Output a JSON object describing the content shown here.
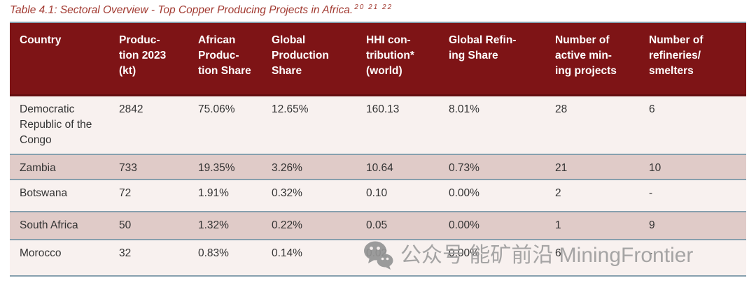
{
  "title": {
    "text": "Table 4.1: Sectoral Overview - Top Copper Producing Projects in Africa.",
    "superscript": "20 21 22"
  },
  "table": {
    "columns": [
      {
        "key": "country",
        "label": "Country"
      },
      {
        "key": "production_2023_kt",
        "label": "Produc-\ntion 2023\n(kt)"
      },
      {
        "key": "african_production_share",
        "label": "African\nProduc-\ntion Share"
      },
      {
        "key": "global_production_share",
        "label": "Global\nProduction\nShare"
      },
      {
        "key": "hhi_contribution_world",
        "label": "HHI con-\ntribution*\n(world)"
      },
      {
        "key": "global_refining_share",
        "label": "Global Refin-\ning Share"
      },
      {
        "key": "active_mining_projects",
        "label": "Number of\nactive min-\ning projects"
      },
      {
        "key": "refineries_smelters",
        "label": "Number of\nrefineries/\nsmelters"
      }
    ],
    "rows": [
      {
        "country": "Democratic Republic of the Congo",
        "cells": [
          "2842",
          "75.06%",
          "12.65%",
          "160.13",
          "8.01%",
          "28",
          "6"
        ]
      },
      {
        "country": "Zambia",
        "cells": [
          "733",
          "19.35%",
          "3.26%",
          "10.64",
          "0.73%",
          "21",
          "10"
        ]
      },
      {
        "country": "Botswana",
        "cells": [
          "72",
          "1.91%",
          "0.32%",
          "0.10",
          "0.00%",
          "2",
          "-"
        ]
      },
      {
        "country": "South Africa",
        "cells": [
          "50",
          "1.32%",
          "0.22%",
          "0.05",
          "0.00%",
          "1",
          "9"
        ]
      },
      {
        "country": "Morocco",
        "cells": [
          "32",
          "0.83%",
          "0.14%",
          "0.02",
          "0.00%",
          "6",
          "-"
        ]
      }
    ]
  },
  "watermark": {
    "icon": "wechat-icon",
    "text": "公众号 能矿前沿 MiningFrontier"
  },
  "colors": {
    "header_background": "#7e1416",
    "header_text": "#ffffff",
    "header_bottom_line": "#650e10",
    "row_light": "#f8f1ef",
    "row_striped": "#e0cbc8",
    "row_divider": "#87a0ae",
    "body_text": "#333333",
    "caption_text": "#a23a31",
    "watermark_gray": "#9e9e9e"
  }
}
